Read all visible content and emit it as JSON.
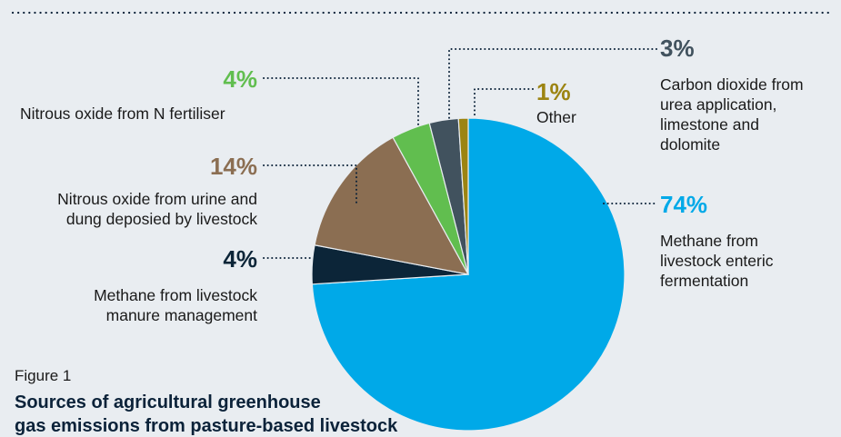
{
  "figure": {
    "label": "Figure 1",
    "title": "Sources of agricultural greenhouse",
    "title_cont": "gas emissions from pasture-based livestock"
  },
  "chart_data": {
    "type": "pie",
    "slices": [
      {
        "value": 74,
        "label": "74%",
        "name": "Methane from livestock enteric fermentation",
        "lines": [
          "Methane from",
          "livestock enteric",
          "fermentation"
        ],
        "color": "#00a9e8"
      },
      {
        "value": 4,
        "label": "4%",
        "name": "Methane from livestock manure management",
        "lines": [
          "Methane from livestock",
          "manure management"
        ],
        "color": "#0c2538"
      },
      {
        "value": 14,
        "label": "14%",
        "name": "Nitrous oxide from urine and dung deposied by livestock",
        "lines": [
          "Nitrous oxide from urine and",
          "dung deposied by livestock"
        ],
        "color": "#8b6e52"
      },
      {
        "value": 4,
        "label": "4%",
        "name": "Nitrous oxide from N fertiliser",
        "lines": [
          "Nitrous oxide from N fertiliser"
        ],
        "color": "#61be4f"
      },
      {
        "value": 3,
        "label": "3%",
        "name": "Carbon dioxide from urea application, limestone and dolomite",
        "lines": [
          "Carbon dioxide from",
          "urea application,",
          "limestone and",
          "dolomite"
        ],
        "color": "#41525e"
      },
      {
        "value": 1,
        "label": "1%",
        "name": "Other",
        "lines": [
          "Other"
        ],
        "color": "#9c8412"
      }
    ],
    "start_angle_deg": 0,
    "direction": "clockwise"
  }
}
